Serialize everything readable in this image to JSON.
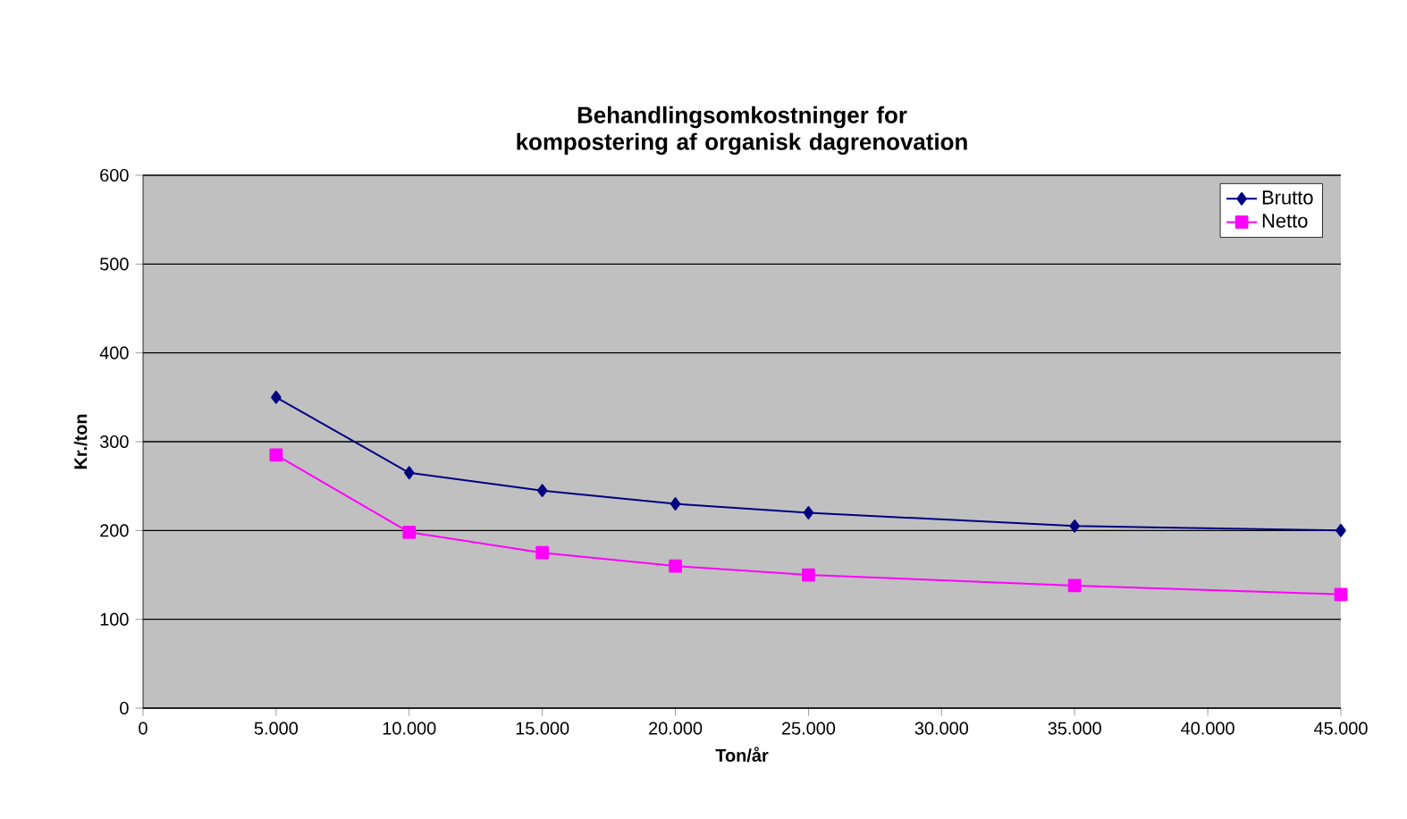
{
  "chart_data": {
    "type": "line",
    "title": "Behandlingsomkostninger for kompostering af organisk dagrenovation",
    "xlabel": "Ton/år",
    "ylabel": "Kr./ton",
    "x": [
      5000,
      10000,
      15000,
      20000,
      25000,
      35000,
      45000
    ],
    "series": [
      {
        "name": "Brutto",
        "color": "#000080",
        "marker": "diamond",
        "values": [
          350,
          265,
          245,
          230,
          220,
          205,
          200
        ]
      },
      {
        "name": "Netto",
        "color": "#ff00ff",
        "marker": "square",
        "values": [
          285,
          198,
          175,
          160,
          150,
          138,
          128
        ]
      }
    ],
    "xlim": [
      0,
      45000
    ],
    "xticks": [
      0,
      {
        "value": 5000,
        "label": "5.000"
      },
      {
        "value": 10000,
        "label": "10.000"
      },
      {
        "value": 15000,
        "label": "15.000"
      },
      {
        "value": 20000,
        "label": "20.000"
      },
      {
        "value": 25000,
        "label": "25.000"
      },
      {
        "value": 30000,
        "label": "30.000"
      },
      {
        "value": 35000,
        "label": "35.000"
      },
      {
        "value": 40000,
        "label": "40.000"
      },
      {
        "value": 45000,
        "label": "45.000"
      }
    ],
    "ylim": [
      0,
      600
    ],
    "yticks": [
      0,
      100,
      200,
      300,
      400,
      500,
      600
    ],
    "grid": "y",
    "legend": "top right",
    "line_style": "solid"
  }
}
